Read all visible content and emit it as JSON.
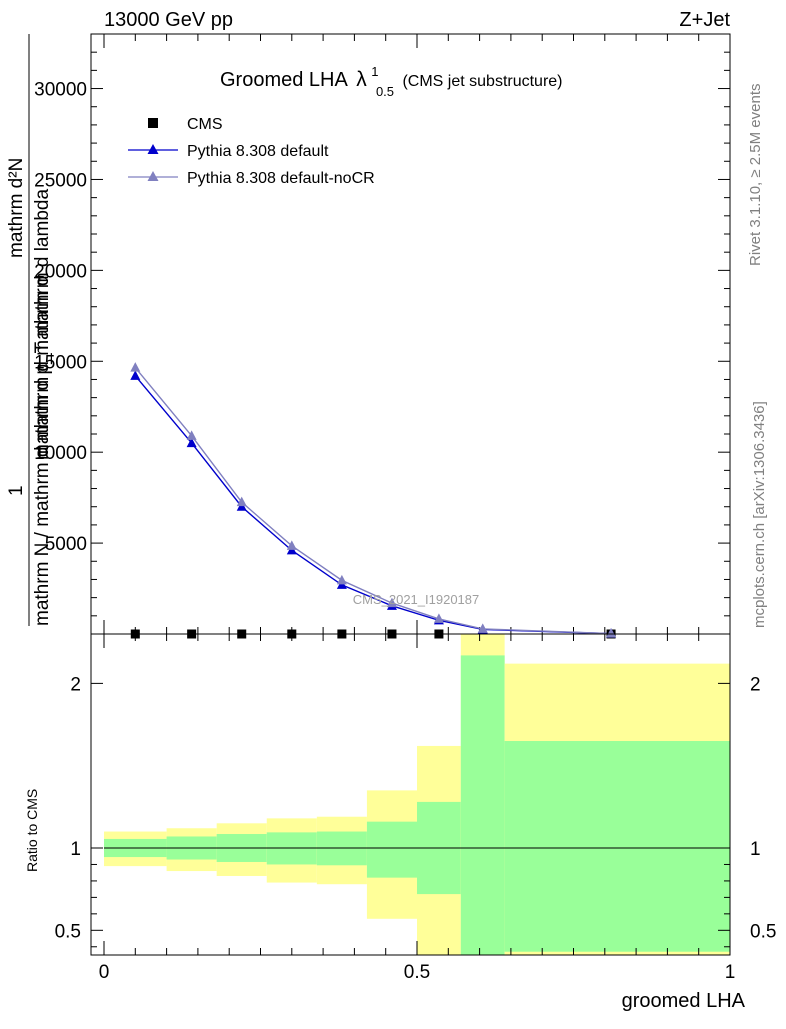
{
  "header": {
    "left": "13000 GeV pp",
    "right": "Z+Jet"
  },
  "side": {
    "rivet": "Rivet 3.1.10, ≥ 2.5M events",
    "mcplots": "mcplots.cern.ch [arXiv:1306.3436]"
  },
  "chart_data": [
    {
      "type": "line",
      "title": "Groomed LHA",
      "title_symbol": "λ",
      "title_sup": "1",
      "title_sub": "0.5",
      "title_note": "(CMS jet substructure)",
      "analysis_label": "CMS_2021_I1920187",
      "ylabel_top": "mathrm d²N",
      "ylabel_mid": "mathrm d p_T mathrm d lambda",
      "ylabel_one": "1",
      "ylabel_bottom": "mathrm N / mathrm d mathrm d mathrm d",
      "xlim": [
        0,
        1
      ],
      "ylim": [
        0,
        33000
      ],
      "y_ticks": [
        5000,
        10000,
        15000,
        20000,
        25000,
        30000
      ],
      "legend_position": "top-left",
      "series": [
        {
          "name": "CMS",
          "marker": "square",
          "color": "#000000",
          "x": [
            0.05,
            0.14,
            0.22,
            0.3,
            0.38,
            0.46,
            0.535,
            0.81
          ],
          "y": [
            0,
            0,
            0,
            0,
            0,
            0,
            0,
            0
          ]
        },
        {
          "name": "Pythia 8.308 default",
          "marker": "triangle",
          "color": "#0000cc",
          "x": [
            0.05,
            0.14,
            0.22,
            0.3,
            0.38,
            0.46,
            0.535,
            0.605,
            0.81
          ],
          "y": [
            14200,
            10500,
            7000,
            4600,
            2700,
            1550,
            750,
            250,
            20
          ]
        },
        {
          "name": "Pythia 8.308 default-noCR",
          "marker": "triangle",
          "color": "#8080c0",
          "x": [
            0.05,
            0.14,
            0.22,
            0.3,
            0.38,
            0.46,
            0.535,
            0.605,
            0.81
          ],
          "y": [
            14650,
            10900,
            7250,
            4850,
            2950,
            1700,
            830,
            280,
            25
          ]
        }
      ]
    },
    {
      "type": "area",
      "ylabel": "Ratio to CMS",
      "xlabel": "groomed LHA",
      "xlim": [
        0,
        1
      ],
      "ylim": [
        0.35,
        2.3
      ],
      "y_ticks": [
        0.5,
        1,
        2
      ],
      "x_ticks": [
        0,
        0.5,
        1
      ],
      "x_tick_labels": [
        "0",
        "0.5",
        "1"
      ],
      "y_tick_labels": [
        "0.5",
        "1",
        "2"
      ],
      "bands": [
        {
          "x0": 0.0,
          "x1": 0.1,
          "yellow_lo": 0.89,
          "yellow_hi": 1.1,
          "green_lo": 0.945,
          "green_hi": 1.055
        },
        {
          "x0": 0.1,
          "x1": 0.18,
          "yellow_lo": 0.86,
          "yellow_hi": 1.12,
          "green_lo": 0.93,
          "green_hi": 1.07
        },
        {
          "x0": 0.18,
          "x1": 0.26,
          "yellow_lo": 0.83,
          "yellow_hi": 1.15,
          "green_lo": 0.915,
          "green_hi": 1.085
        },
        {
          "x0": 0.26,
          "x1": 0.34,
          "yellow_lo": 0.79,
          "yellow_hi": 1.18,
          "green_lo": 0.9,
          "green_hi": 1.095
        },
        {
          "x0": 0.34,
          "x1": 0.42,
          "yellow_lo": 0.78,
          "yellow_hi": 1.19,
          "green_lo": 0.895,
          "green_hi": 1.1
        },
        {
          "x0": 0.42,
          "x1": 0.5,
          "yellow_lo": 0.57,
          "yellow_hi": 1.35,
          "green_lo": 0.82,
          "green_hi": 1.16
        },
        {
          "x0": 0.5,
          "x1": 0.57,
          "yellow_lo": 0.35,
          "yellow_hi": 1.62,
          "green_lo": 0.72,
          "green_hi": 1.28
        },
        {
          "x0": 0.57,
          "x1": 0.64,
          "yellow_lo": 0.35,
          "yellow_hi": 2.3,
          "green_lo": 0.35,
          "green_hi": 2.17
        },
        {
          "x0": 0.64,
          "x1": 1.0,
          "yellow_lo": 0.35,
          "yellow_hi": 2.12,
          "green_lo": 0.37,
          "green_hi": 1.65
        }
      ],
      "reference_line": 1
    }
  ]
}
